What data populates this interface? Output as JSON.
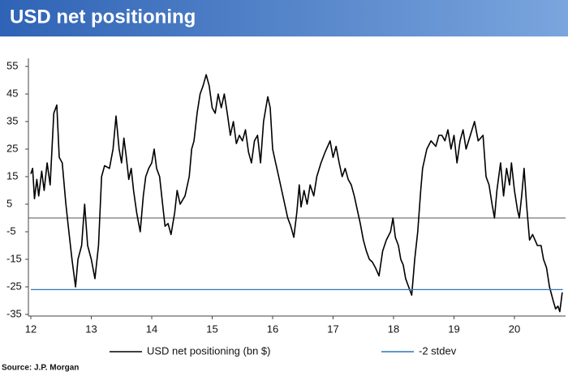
{
  "chart_data": {
    "type": "line",
    "title": "USD net positioning",
    "source": "Source: J.P. Morgan",
    "xlim": [
      12,
      20.8
    ],
    "xticks": [
      12,
      13,
      14,
      15,
      16,
      17,
      18,
      19,
      20
    ],
    "ylim": [
      -35,
      55
    ],
    "yticks": [
      -35,
      -25,
      -15,
      -5,
      5,
      15,
      25,
      35,
      45,
      55
    ],
    "series": [
      {
        "name": "USD net positioning (bn $)",
        "color": "#000000",
        "x": [
          12.0,
          12.03,
          12.06,
          12.1,
          12.13,
          12.18,
          12.22,
          12.27,
          12.32,
          12.38,
          12.43,
          12.47,
          12.52,
          12.58,
          12.63,
          12.68,
          12.74,
          12.78,
          12.84,
          12.89,
          12.94,
          13.0,
          13.06,
          13.12,
          13.17,
          13.22,
          13.3,
          13.36,
          13.41,
          13.46,
          13.5,
          13.54,
          13.58,
          13.62,
          13.66,
          13.7,
          13.75,
          13.81,
          13.86,
          13.9,
          13.95,
          14.0,
          14.04,
          14.08,
          14.13,
          14.18,
          14.22,
          14.27,
          14.32,
          14.38,
          14.42,
          14.47,
          14.55,
          14.62,
          14.66,
          14.7,
          14.75,
          14.8,
          14.85,
          14.9,
          14.95,
          15.0,
          15.05,
          15.1,
          15.15,
          15.2,
          15.25,
          15.3,
          15.35,
          15.4,
          15.45,
          15.5,
          15.55,
          15.6,
          15.65,
          15.7,
          15.75,
          15.8,
          15.85,
          15.92,
          15.96,
          16.0,
          16.05,
          16.1,
          16.15,
          16.2,
          16.25,
          16.3,
          16.35,
          16.4,
          16.44,
          16.47,
          16.52,
          16.57,
          16.62,
          16.68,
          16.73,
          16.8,
          16.87,
          16.95,
          17.0,
          17.05,
          17.1,
          17.15,
          17.2,
          17.25,
          17.3,
          17.35,
          17.4,
          17.45,
          17.5,
          17.55,
          17.6,
          17.65,
          17.7,
          17.76,
          17.82,
          17.88,
          17.95,
          17.99,
          18.03,
          18.08,
          18.12,
          18.16,
          18.2,
          18.25,
          18.3,
          18.35,
          18.4,
          18.45,
          18.48,
          18.55,
          18.62,
          18.7,
          18.75,
          18.8,
          18.85,
          18.9,
          18.95,
          19.0,
          19.05,
          19.1,
          19.15,
          19.2,
          19.27,
          19.34,
          19.4,
          19.48,
          19.53,
          19.58,
          19.63,
          19.67,
          19.71,
          19.77,
          19.82,
          19.87,
          19.92,
          19.95,
          20.0,
          20.05,
          20.08,
          20.12,
          20.16,
          20.2,
          20.25,
          20.3,
          20.38,
          20.44,
          20.48,
          20.53,
          20.58,
          20.64,
          20.68,
          20.72,
          20.75,
          20.79
        ],
        "values": [
          16,
          18,
          7,
          14,
          8,
          17,
          10,
          20,
          12,
          38,
          41,
          22,
          20,
          5,
          -5,
          -15,
          -25,
          -15,
          -10,
          5,
          -10,
          -15,
          -22,
          -10,
          15,
          19,
          18,
          25,
          37,
          25,
          20,
          29,
          22,
          14,
          18,
          10,
          2,
          -5,
          8,
          15,
          18,
          20,
          25,
          18,
          15,
          5,
          -3,
          -2,
          -6,
          2,
          10,
          5,
          8,
          15,
          25,
          28,
          38,
          45,
          48,
          52,
          48,
          40,
          38,
          45,
          40,
          45,
          38,
          30,
          35,
          27,
          30,
          28,
          32,
          24,
          20,
          28,
          30,
          20,
          35,
          44,
          40,
          25,
          20,
          15,
          10,
          5,
          0,
          -3,
          -7,
          2,
          12,
          4,
          10,
          5,
          12,
          8,
          15,
          20,
          24,
          28,
          22,
          26,
          20,
          15,
          18,
          14,
          12,
          8,
          3,
          -2,
          -8,
          -12,
          -15,
          -16,
          -18,
          -21,
          -12,
          -8,
          -5,
          0,
          -7,
          -10,
          -15,
          -17,
          -22,
          -25,
          -28,
          -15,
          -5,
          10,
          18,
          25,
          28,
          26,
          30,
          30,
          28,
          32,
          25,
          30,
          20,
          28,
          32,
          25,
          30,
          35,
          28,
          30,
          15,
          12,
          5,
          0,
          10,
          20,
          8,
          18,
          12,
          20,
          10,
          3,
          0,
          8,
          18,
          5,
          -8,
          -6,
          -10,
          -10,
          -15,
          -18,
          -25,
          -30,
          -33,
          -32,
          -34,
          -27
        ]
      },
      {
        "name": "-2 stdev",
        "color": "#2e75b6",
        "x": [
          12,
          20.8
        ],
        "values": [
          -26,
          -26
        ]
      }
    ]
  }
}
